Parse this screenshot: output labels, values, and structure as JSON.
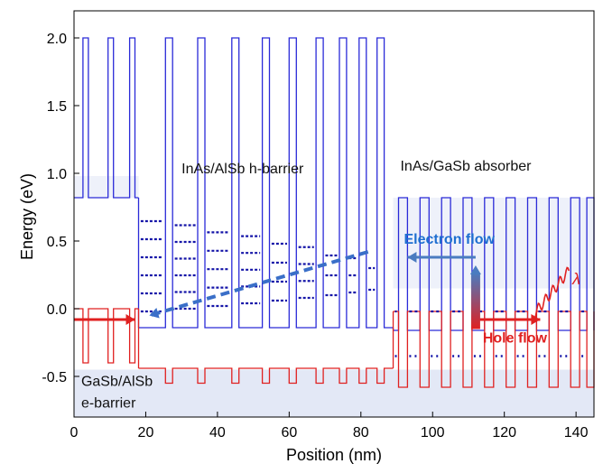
{
  "chart_data": {
    "type": "line",
    "xlabel": "Position (nm)",
    "ylabel": "Energy (eV)",
    "xlim": [
      0,
      145
    ],
    "ylim": [
      -0.8,
      2.2
    ],
    "x_ticks": [
      0,
      20,
      40,
      60,
      80,
      100,
      120,
      140
    ],
    "y_ticks": [
      -0.5,
      0.0,
      0.5,
      1.0,
      1.5,
      2.0
    ],
    "x_tick_labels": [
      "0",
      "20",
      "40",
      "60",
      "80",
      "100",
      "120",
      "140"
    ],
    "y_tick_labels": [
      "-0.5",
      "0.0",
      "0.5",
      "1.0",
      "1.5",
      "2.0"
    ],
    "grid": false,
    "series": [
      {
        "color": "#2a2ad8",
        "description_of_band": "conduction band edge",
        "regions": [
          {
            "x": [
              0,
              18
            ],
            "well_level": 0.82,
            "barrier_level": 2.0,
            "barriers": [
              [
                2.5,
                4.0
              ],
              [
                9.5,
                11.0
              ],
              [
                15.5,
                17.0
              ]
            ]
          },
          {
            "x": [
              18,
              89
            ],
            "well_level": -0.14,
            "barrier_level": 2.0,
            "barriers": [
              [
                25.5,
                27.5
              ],
              [
                34.5,
                36.5
              ],
              [
                44.0,
                46.0
              ],
              [
                52.5,
                54.5
              ],
              [
                60.0,
                62.0
              ],
              [
                67.5,
                69.5
              ],
              [
                74.0,
                76.0
              ],
              [
                79.5,
                81.5
              ],
              [
                84.5,
                86.5
              ]
            ]
          },
          {
            "x": [
              89,
              145
            ],
            "well_level": -0.16,
            "barrier_level": 0.82,
            "barriers": [
              [
                90.5,
                93.0
              ],
              [
                96.5,
                99.0
              ],
              [
                102.5,
                105.0
              ],
              [
                108.5,
                111.0
              ],
              [
                114.5,
                117.0
              ],
              [
                120.5,
                123.0
              ],
              [
                126.5,
                129.0
              ],
              [
                132.5,
                135.0
              ],
              [
                138.5,
                141.0
              ],
              [
                143.0,
                145.0
              ]
            ]
          }
        ]
      },
      {
        "color": "#e02020",
        "description_of_band": "valence band edge",
        "regions": [
          {
            "x": [
              0,
              18
            ],
            "barrier_level": -0.4,
            "well_level": 0.0,
            "barriers": [
              [
                2.5,
                4.0
              ],
              [
                9.5,
                11.0
              ],
              [
                15.5,
                17.0
              ]
            ]
          },
          {
            "x": [
              18,
              89
            ],
            "barrier_level": -0.55,
            "well_level": -0.44,
            "barriers": [
              [
                25.5,
                27.5
              ],
              [
                34.5,
                36.5
              ],
              [
                44.0,
                46.0
              ],
              [
                52.5,
                54.5
              ],
              [
                60.0,
                62.0
              ],
              [
                67.5,
                69.5
              ],
              [
                74.0,
                76.0
              ],
              [
                79.5,
                81.5
              ],
              [
                84.5,
                86.5
              ]
            ]
          },
          {
            "x": [
              89,
              145
            ],
            "barrier_level": -0.58,
            "well_level": -0.02,
            "barriers": [
              [
                90.5,
                93.0
              ],
              [
                96.5,
                99.0
              ],
              [
                102.5,
                105.0
              ],
              [
                108.5,
                111.0
              ],
              [
                114.5,
                117.0
              ],
              [
                120.5,
                123.0
              ],
              [
                126.5,
                129.0
              ],
              [
                132.5,
                135.0
              ],
              [
                138.5,
                141.0
              ],
              [
                143.0,
                145.0
              ]
            ]
          }
        ]
      }
    ],
    "annotations": [
      {
        "text": "InAs/AlSb h-barrier",
        "x": 30,
        "y": 1.0
      },
      {
        "text": "InAs/GaSb absorber",
        "x": 91,
        "y": 1.02
      },
      {
        "text": "Electron flow",
        "x": 92,
        "y": 0.48,
        "color": "#1e6fd0"
      },
      {
        "text": "Hole flow",
        "x": 114,
        "y": -0.25,
        "color": "#e02020"
      },
      {
        "text": "GaSb/AlSb",
        "x": 2,
        "y": -0.57
      },
      {
        "text": "e-barrier",
        "x": 2,
        "y": -0.73
      },
      {
        "text": "λ",
        "x": 139,
        "y": 0.18,
        "color": "#e02020"
      }
    ],
    "arrows": [
      {
        "name": "electron-flow-arrow",
        "from": [
          112,
          0.38
        ],
        "to": [
          93,
          0.38
        ],
        "color": "#4a7cc0"
      },
      {
        "name": "electron-dashed-arrow",
        "from": [
          82,
          0.42
        ],
        "to": [
          21,
          -0.05
        ],
        "color": "#3a6fc8",
        "dashed": true
      },
      {
        "name": "hole-flow-arrow",
        "from": [
          112,
          -0.08
        ],
        "to": [
          130,
          -0.08
        ],
        "color": "#e02020"
      },
      {
        "name": "hole-left-arrow",
        "from": [
          0,
          -0.08
        ],
        "to": [
          17,
          -0.08
        ],
        "color": "#e02020"
      },
      {
        "name": "excitation-arrow",
        "from": [
          112,
          -0.15
        ],
        "to": [
          112,
          0.32
        ],
        "color": "#4a7cc0"
      }
    ],
    "colors": {
      "band_lines": "#2a2ad8",
      "valence": "#e02020",
      "axis": "#000000"
    }
  }
}
